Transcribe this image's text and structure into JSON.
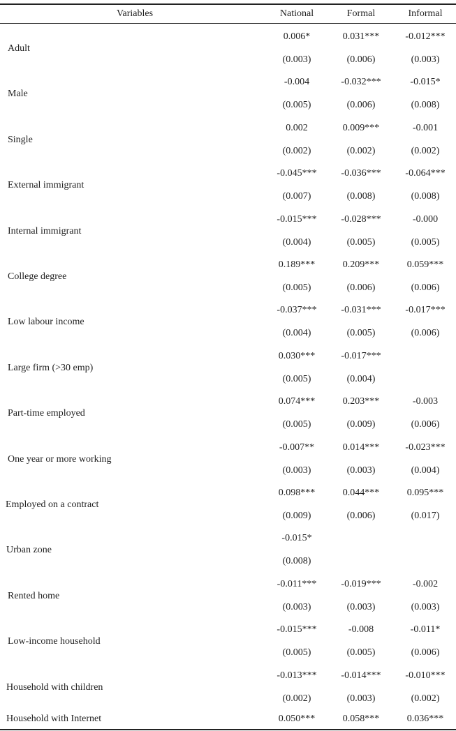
{
  "header": {
    "variables": "Variables",
    "columns": [
      "National",
      "Formal",
      "Informal"
    ]
  },
  "rows": [
    {
      "label": "Adult",
      "coef": [
        "0.006*",
        "0.031***",
        "-0.012***"
      ],
      "se": [
        "(0.003)",
        "(0.006)",
        "(0.003)"
      ]
    },
    {
      "label": "Male",
      "coef": [
        "-0.004",
        "-0.032***",
        "-0.015*"
      ],
      "se": [
        "(0.005)",
        "(0.006)",
        "(0.008)"
      ]
    },
    {
      "label": "Single",
      "coef": [
        "0.002",
        "0.009***",
        "-0.001"
      ],
      "se": [
        "(0.002)",
        "(0.002)",
        "(0.002)"
      ]
    },
    {
      "label": "External immigrant",
      "coef": [
        "-0.045***",
        "-0.036***",
        "-0.064***"
      ],
      "se": [
        "(0.007)",
        "(0.008)",
        "(0.008)"
      ]
    },
    {
      "label": "Internal immigrant",
      "coef": [
        "-0.015***",
        "-0.028***",
        "-0.000"
      ],
      "se": [
        "(0.004)",
        "(0.005)",
        "(0.005)"
      ]
    },
    {
      "label": "College degree",
      "coef": [
        "0.189***",
        "0.209***",
        "0.059***"
      ],
      "se": [
        "(0.005)",
        "(0.006)",
        "(0.006)"
      ]
    },
    {
      "label": "Low labour income",
      "coef": [
        "-0.037***",
        "-0.031***",
        "-0.017***"
      ],
      "se": [
        "(0.004)",
        "(0.005)",
        "(0.006)"
      ]
    },
    {
      "label": "Large firm (>30 emp)",
      "coef": [
        "0.030***",
        "-0.017***",
        ""
      ],
      "se": [
        "(0.005)",
        "(0.004)",
        ""
      ]
    },
    {
      "label": "Part-time employed",
      "coef": [
        "0.074***",
        "0.203***",
        "-0.003"
      ],
      "se": [
        "(0.005)",
        "(0.009)",
        "(0.006)"
      ]
    },
    {
      "label": "One year or more working",
      "coef": [
        "-0.007**",
        "0.014***",
        "-0.023***"
      ],
      "se": [
        "(0.003)",
        "(0.003)",
        "(0.004)"
      ]
    },
    {
      "label": "Employed on a contract",
      "coef": [
        "0.098***",
        "0.044***",
        "0.095***"
      ],
      "se": [
        "(0.009)",
        "(0.006)",
        "(0.017)"
      ]
    },
    {
      "label": "Urban zone",
      "coef": [
        "-0.015*",
        "",
        ""
      ],
      "se": [
        "(0.008)",
        "",
        ""
      ]
    },
    {
      "label": "Rented home",
      "coef": [
        "-0.011***",
        "-0.019***",
        "-0.002"
      ],
      "se": [
        "(0.003)",
        "(0.003)",
        "(0.003)"
      ]
    },
    {
      "label": "Low-income household",
      "coef": [
        "-0.015***",
        "-0.008",
        "-0.011*"
      ],
      "se": [
        "(0.005)",
        "(0.005)",
        "(0.006)"
      ]
    },
    {
      "label": "Household with children",
      "coef": [
        "-0.013***",
        "-0.014***",
        "-0.010***"
      ],
      "se": [
        "(0.002)",
        "(0.003)",
        "(0.002)"
      ]
    }
  ],
  "last_row": {
    "label": "Household with Internet",
    "coef": [
      "0.050***",
      "0.058***",
      "0.036***"
    ]
  }
}
